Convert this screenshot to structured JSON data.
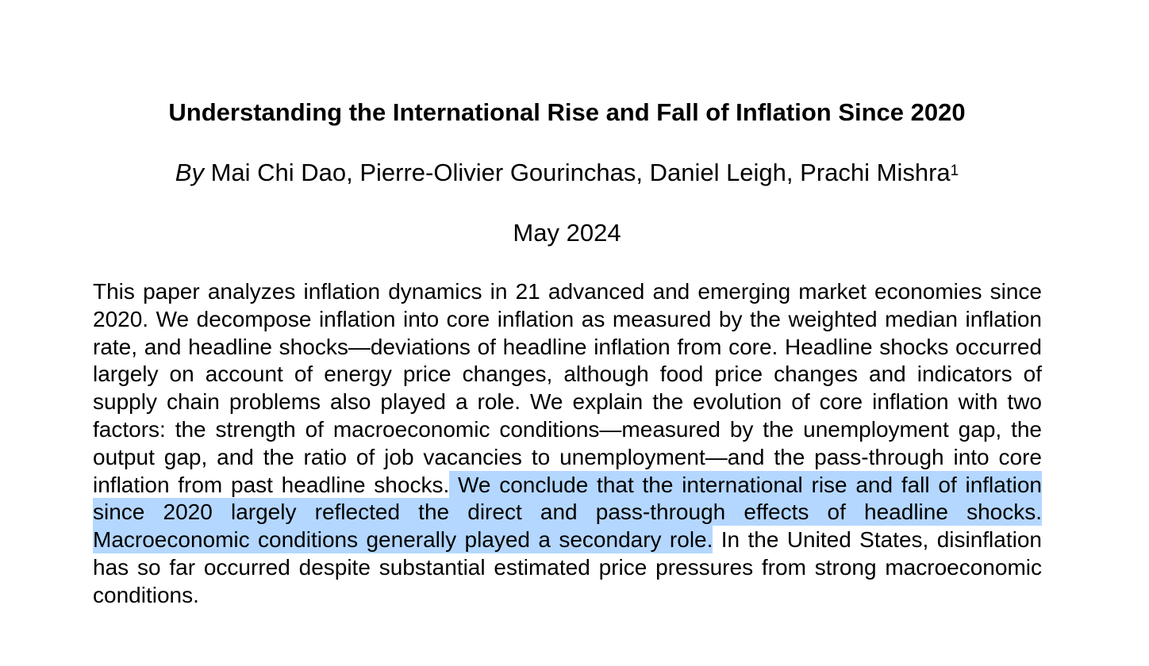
{
  "paper": {
    "title": "Understanding the International Rise and Fall of Inflation Since 2020",
    "by": "By",
    "authors": " Mai Chi Dao, Pierre-Olivier Gourinchas, Daniel Leigh, Prachi Mishra",
    "footnote_marker": "1",
    "date": "May 2024",
    "abstract": {
      "before_highlight": "This paper analyzes inflation dynamics in 21 advanced and emerging market economies since 2020. We decompose inflation into core inflation as measured by the weighted median inflation rate, and headline shocks—deviations of headline inflation from core. Headline shocks occurred largely on account of energy price changes, although food price changes and indicators of supply chain problems also played a role. We explain the evolution of core inflation with two factors: the strength of macroeconomic conditions—measured by the unemployment gap, the output gap, and the ratio of job vacancies to unemployment—and the pass-through into core inflation from past headline shocks.",
      "highlighted": " We conclude that the international rise and fall of inflation since 2020 largely reflected the direct and pass-through effects of headline shocks. Macroeconomic conditions generally played a secondary role.",
      "after_highlight": " In the United States, disinflation has so far occurred despite substantial estimated price pressures from strong macroeconomic conditions."
    }
  },
  "colors": {
    "selection_highlight": "#b4d7ff",
    "text": "#000000",
    "background": "#ffffff"
  }
}
